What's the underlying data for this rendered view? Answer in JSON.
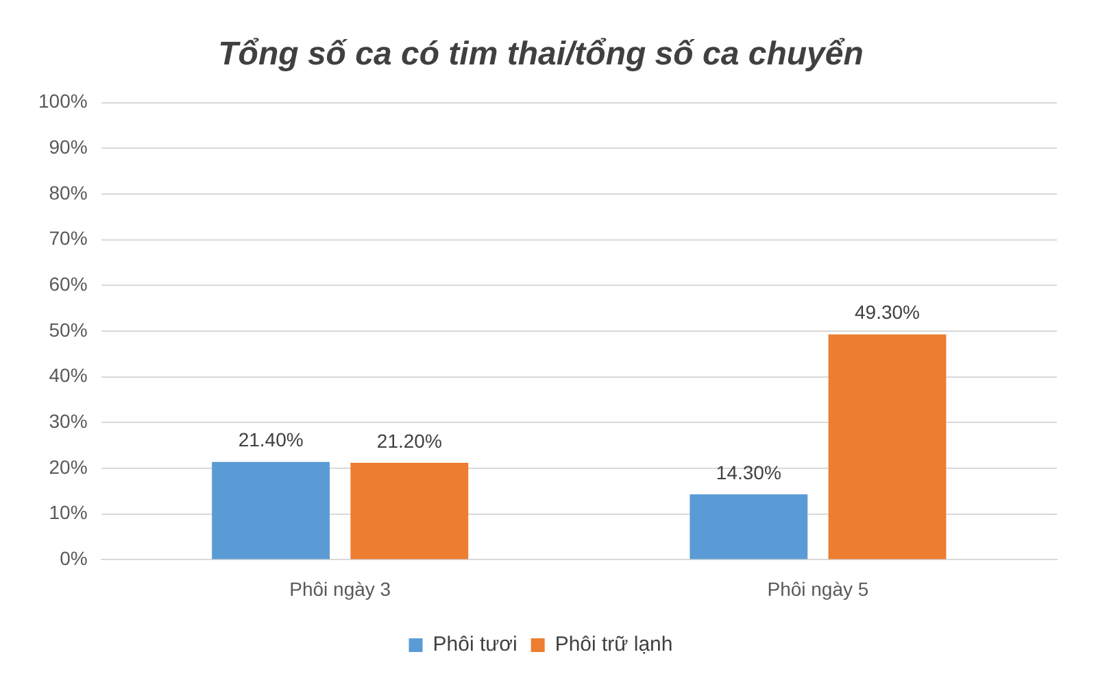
{
  "chart_data": {
    "type": "bar",
    "title": "Tổng số ca có tim thai/tổng số ca chuyển",
    "categories": [
      "Phôi ngày 3",
      "Phôi ngày 5"
    ],
    "series": [
      {
        "name": "Phôi tươi",
        "color": "#5b9bd5",
        "values": [
          21.4,
          14.3
        ],
        "value_labels": [
          "21.40%",
          "14.30%"
        ]
      },
      {
        "name": "Phôi trữ lạnh",
        "color": "#ed7d31",
        "values": [
          21.2,
          49.3
        ],
        "value_labels": [
          "21.20%",
          "49.30%"
        ]
      }
    ],
    "ylim": [
      0,
      100
    ],
    "yticks": [
      {
        "value": 0,
        "label": "0%"
      },
      {
        "value": 10,
        "label": "10%"
      },
      {
        "value": 20,
        "label": "20%"
      },
      {
        "value": 30,
        "label": "30%"
      },
      {
        "value": 40,
        "label": "40%"
      },
      {
        "value": 50,
        "label": "50%"
      },
      {
        "value": 60,
        "label": "60%"
      },
      {
        "value": 70,
        "label": "70%"
      },
      {
        "value": 80,
        "label": "80%"
      },
      {
        "value": 90,
        "label": "90%"
      },
      {
        "value": 100,
        "label": "100%"
      }
    ],
    "grid": "y",
    "legend": "bottom"
  }
}
